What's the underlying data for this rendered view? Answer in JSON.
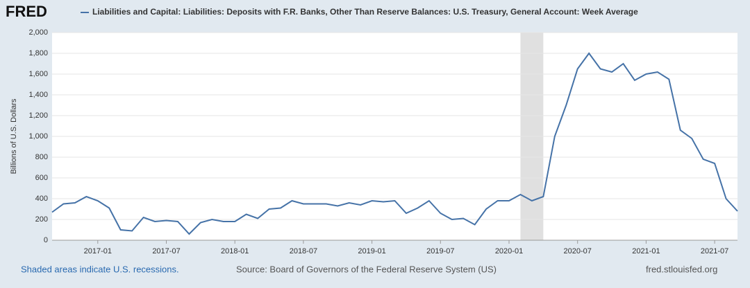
{
  "logo": "FRED",
  "chart_data": {
    "type": "line",
    "x": [
      "2016-09",
      "2016-10",
      "2016-11",
      "2016-12",
      "2017-01",
      "2017-02",
      "2017-03",
      "2017-04",
      "2017-05",
      "2017-06",
      "2017-07",
      "2017-08",
      "2017-09",
      "2017-10",
      "2017-11",
      "2017-12",
      "2018-01",
      "2018-02",
      "2018-03",
      "2018-04",
      "2018-05",
      "2018-06",
      "2018-07",
      "2018-08",
      "2018-09",
      "2018-10",
      "2018-11",
      "2018-12",
      "2019-01",
      "2019-02",
      "2019-03",
      "2019-04",
      "2019-05",
      "2019-06",
      "2019-07",
      "2019-08",
      "2019-09",
      "2019-10",
      "2019-11",
      "2019-12",
      "2020-01",
      "2020-02",
      "2020-03",
      "2020-04",
      "2020-05",
      "2020-06",
      "2020-07",
      "2020-08",
      "2020-09",
      "2020-10",
      "2020-11",
      "2020-12",
      "2021-01",
      "2021-02",
      "2021-03",
      "2021-04",
      "2021-05",
      "2021-06",
      "2021-07",
      "2021-08",
      "2021-09"
    ],
    "series": [
      {
        "name": "Liabilities and Capital: Liabilities: Deposits with F.R. Banks, Other Than Reserve Balances: U.S. Treasury, General Account: Week Average",
        "color": "#4572a7",
        "values": [
          270,
          350,
          360,
          420,
          380,
          310,
          100,
          90,
          220,
          180,
          190,
          180,
          60,
          170,
          200,
          180,
          180,
          250,
          210,
          300,
          310,
          380,
          350,
          350,
          350,
          330,
          360,
          340,
          380,
          370,
          380,
          260,
          310,
          380,
          260,
          200,
          210,
          150,
          300,
          380,
          380,
          440,
          380,
          420,
          1000,
          1300,
          1650,
          1800,
          1650,
          1620,
          1700,
          1540,
          1600,
          1620,
          1550,
          1060,
          980,
          780,
          740,
          400,
          280
        ]
      }
    ],
    "xlim": [
      "2016-09",
      "2021-09"
    ],
    "xticks": [
      "2017-01",
      "2017-07",
      "2018-01",
      "2018-07",
      "2019-01",
      "2019-07",
      "2020-01",
      "2020-07",
      "2021-01",
      "2021-07"
    ],
    "ylim": [
      0,
      2000
    ],
    "yticks": [
      0,
      200,
      400,
      600,
      800,
      {
        "value": 1000,
        "label": "1,000"
      },
      {
        "value": 1200,
        "label": "1,200"
      },
      {
        "value": 1400,
        "label": "1,400"
      },
      {
        "value": 1600,
        "label": "1,600"
      },
      {
        "value": 1800,
        "label": "1,800"
      },
      {
        "value": 2000,
        "label": "2,000"
      }
    ],
    "ylabel": "Billions of U.S. Dollars",
    "recessions": [
      [
        "2020-02",
        "2020-04"
      ]
    ],
    "grid": true,
    "note": "Shaded areas indicate U.S. recessions.",
    "source": "Source: Board of Governors of the Federal Reserve System (US)",
    "site": "fred.stlouisfed.org"
  }
}
